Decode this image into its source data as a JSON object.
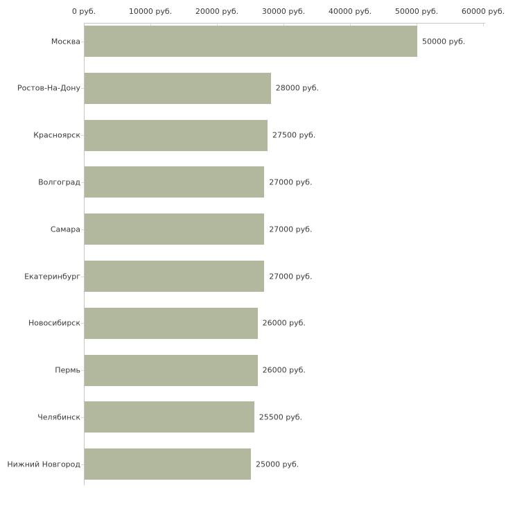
{
  "chart_data": {
    "type": "bar",
    "orientation": "horizontal",
    "title": "",
    "xlabel": "",
    "ylabel": "",
    "xlim": [
      0,
      60000
    ],
    "grid": false,
    "legend": false,
    "axis_position": "top",
    "unit": "руб.",
    "categories": [
      "Москва",
      "Ростов-На-Дону",
      "Красноярск",
      "Волгоград",
      "Самара",
      "Екатеринбург",
      "Новосибирск",
      "Пермь",
      "Челябинск",
      "Нижний Новгород"
    ],
    "values": [
      50000,
      28000,
      27500,
      27000,
      27000,
      27000,
      26000,
      26000,
      25500,
      25000
    ],
    "value_labels": [
      "50000 руб.",
      "28000 руб.",
      "27500 руб.",
      "27000 руб.",
      "27000 руб.",
      "27000 руб.",
      "26000 руб.",
      "26000 руб.",
      "25500 руб.",
      "25000 руб."
    ],
    "x_ticks": [
      0,
      10000,
      20000,
      30000,
      40000,
      50000,
      60000
    ],
    "x_tick_labels": [
      "0 руб.",
      "10000 руб.",
      "20000 руб.",
      "30000 руб.",
      "40000 руб.",
      "50000 руб.",
      "60000 руб."
    ],
    "colors": {
      "bar": "#b2b89e",
      "axis_line": "#c6c6c6",
      "tick_mark": "#d9dcc2",
      "text": "#3a3a3a",
      "background": "#ffffff"
    }
  }
}
